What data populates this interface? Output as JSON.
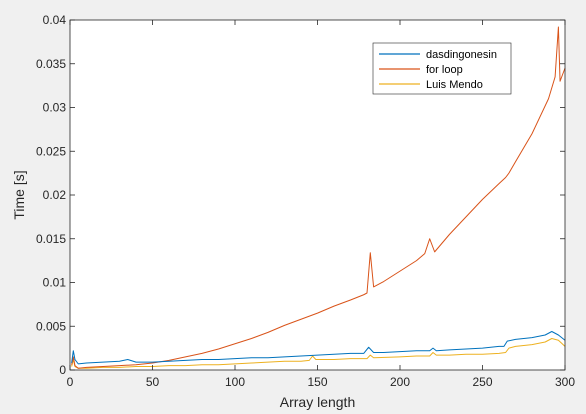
{
  "chart_data": {
    "type": "line",
    "xlabel": "Array length",
    "ylabel": "Time [s]",
    "xlim": [
      0,
      300
    ],
    "ylim": [
      0,
      0.04
    ],
    "x_ticks": [
      0,
      50,
      100,
      150,
      200,
      250,
      300
    ],
    "y_ticks": [
      0,
      0.005,
      0.01,
      0.015,
      0.02,
      0.025,
      0.03,
      0.035,
      0.04
    ],
    "x_tick_labels": [
      "0",
      "50",
      "100",
      "150",
      "200",
      "250",
      "300"
    ],
    "y_tick_labels": [
      "0",
      "0.005",
      "0.01",
      "0.015",
      "0.02",
      "0.025",
      "0.03",
      "0.035",
      "0.04"
    ],
    "grid": false,
    "legend_position": "top-right",
    "series": [
      {
        "name": "dasdingonesin",
        "color": "#0072bd",
        "points": [
          [
            1,
            0.0008
          ],
          [
            2,
            0.0022
          ],
          [
            3,
            0.0012
          ],
          [
            5,
            0.0007
          ],
          [
            10,
            0.0008
          ],
          [
            20,
            0.0009
          ],
          [
            30,
            0.001
          ],
          [
            35,
            0.0012
          ],
          [
            40,
            0.0009
          ],
          [
            45,
            0.0009
          ],
          [
            50,
            0.0009
          ],
          [
            60,
            0.001
          ],
          [
            70,
            0.0011
          ],
          [
            80,
            0.0012
          ],
          [
            90,
            0.0012
          ],
          [
            100,
            0.0013
          ],
          [
            110,
            0.0014
          ],
          [
            120,
            0.0014
          ],
          [
            130,
            0.0015
          ],
          [
            140,
            0.0016
          ],
          [
            150,
            0.0017
          ],
          [
            160,
            0.0018
          ],
          [
            170,
            0.0019
          ],
          [
            178,
            0.0019
          ],
          [
            181,
            0.0026
          ],
          [
            184,
            0.002
          ],
          [
            190,
            0.002
          ],
          [
            200,
            0.0021
          ],
          [
            210,
            0.0022
          ],
          [
            218,
            0.0022
          ],
          [
            220,
            0.0025
          ],
          [
            222,
            0.0022
          ],
          [
            230,
            0.0023
          ],
          [
            240,
            0.0024
          ],
          [
            250,
            0.0025
          ],
          [
            260,
            0.0027
          ],
          [
            263,
            0.0027
          ],
          [
            265,
            0.0033
          ],
          [
            270,
            0.0035
          ],
          [
            280,
            0.0037
          ],
          [
            288,
            0.004
          ],
          [
            292,
            0.0044
          ],
          [
            296,
            0.004
          ],
          [
            300,
            0.0034
          ]
        ]
      },
      {
        "name": "for loop",
        "color": "#d95319",
        "points": [
          [
            1,
            0.0006
          ],
          [
            2,
            0.0015
          ],
          [
            3,
            0.0005
          ],
          [
            5,
            0.0002
          ],
          [
            10,
            0.0003
          ],
          [
            20,
            0.0004
          ],
          [
            30,
            0.0005
          ],
          [
            40,
            0.0006
          ],
          [
            50,
            0.0008
          ],
          [
            60,
            0.0011
          ],
          [
            70,
            0.0015
          ],
          [
            80,
            0.0019
          ],
          [
            90,
            0.0024
          ],
          [
            100,
            0.003
          ],
          [
            110,
            0.0036
          ],
          [
            120,
            0.0043
          ],
          [
            130,
            0.0051
          ],
          [
            140,
            0.0058
          ],
          [
            150,
            0.0065
          ],
          [
            160,
            0.0073
          ],
          [
            170,
            0.008
          ],
          [
            178,
            0.0086
          ],
          [
            180,
            0.0088
          ],
          [
            182,
            0.0134
          ],
          [
            184,
            0.0095
          ],
          [
            190,
            0.0101
          ],
          [
            200,
            0.0113
          ],
          [
            210,
            0.0125
          ],
          [
            215,
            0.0133
          ],
          [
            218,
            0.015
          ],
          [
            221,
            0.0135
          ],
          [
            230,
            0.0155
          ],
          [
            240,
            0.0175
          ],
          [
            250,
            0.0195
          ],
          [
            260,
            0.0213
          ],
          [
            264,
            0.022
          ],
          [
            266,
            0.0225
          ],
          [
            270,
            0.0238
          ],
          [
            280,
            0.027
          ],
          [
            290,
            0.031
          ],
          [
            294,
            0.0335
          ],
          [
            296,
            0.0392
          ],
          [
            297,
            0.033
          ],
          [
            300,
            0.0345
          ]
        ]
      },
      {
        "name": "Luis Mendo",
        "color": "#edb120",
        "points": [
          [
            1,
            0.0004
          ],
          [
            2,
            0.0012
          ],
          [
            3,
            0.0004
          ],
          [
            5,
            0.0002
          ],
          [
            10,
            0.0002
          ],
          [
            20,
            0.0003
          ],
          [
            30,
            0.0003
          ],
          [
            40,
            0.0004
          ],
          [
            50,
            0.0004
          ],
          [
            60,
            0.0005
          ],
          [
            70,
            0.0005
          ],
          [
            80,
            0.0006
          ],
          [
            90,
            0.0006
          ],
          [
            100,
            0.0007
          ],
          [
            110,
            0.0008
          ],
          [
            120,
            0.0009
          ],
          [
            130,
            0.001
          ],
          [
            140,
            0.001
          ],
          [
            145,
            0.0011
          ],
          [
            147,
            0.0016
          ],
          [
            149,
            0.0012
          ],
          [
            160,
            0.0012
          ],
          [
            170,
            0.0013
          ],
          [
            180,
            0.0013
          ],
          [
            182,
            0.0017
          ],
          [
            184,
            0.0014
          ],
          [
            200,
            0.0015
          ],
          [
            210,
            0.0016
          ],
          [
            218,
            0.0016
          ],
          [
            220,
            0.002
          ],
          [
            222,
            0.0017
          ],
          [
            230,
            0.0017
          ],
          [
            240,
            0.0018
          ],
          [
            250,
            0.0018
          ],
          [
            260,
            0.0019
          ],
          [
            264,
            0.002
          ],
          [
            266,
            0.0025
          ],
          [
            270,
            0.0027
          ],
          [
            280,
            0.0029
          ],
          [
            288,
            0.0032
          ],
          [
            292,
            0.0036
          ],
          [
            296,
            0.0034
          ],
          [
            300,
            0.0027
          ]
        ]
      }
    ]
  }
}
